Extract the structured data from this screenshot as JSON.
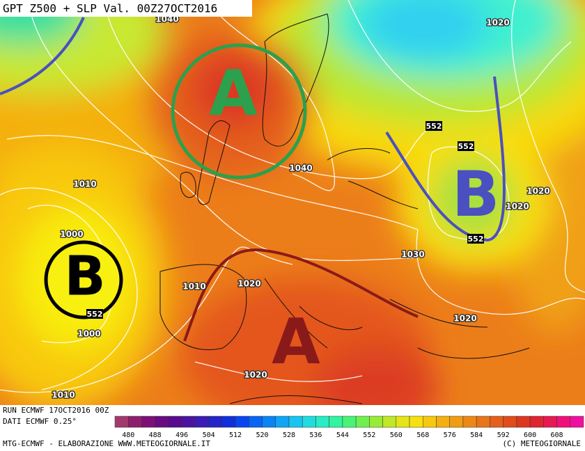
{
  "header": {
    "title": "GPT Z500 + SLP Val. 00Z27OCT2016"
  },
  "centers": [
    "A",
    "A",
    "B",
    "B"
  ],
  "isobar_labels": [
    "1040",
    "1020",
    "1010",
    "1000",
    "1040",
    "1020",
    "1020",
    "1030",
    "1010",
    "1020",
    "1000",
    "1020",
    "1020",
    "1010"
  ],
  "height_labels": [
    "552",
    "552",
    "552",
    "552"
  ],
  "footer": {
    "run": "RUN ECMWF 17OCT2016 00Z",
    "source": "DATI ECMWF 0.25°",
    "credit": "MTG-ECMWF - ELABORAZIONE WWW.METEOGIORNALE.IT",
    "copyright": "(C) METEOGIORNALE"
  },
  "colorbar": {
    "ticks": [
      480,
      488,
      496,
      504,
      512,
      520,
      528,
      536,
      544,
      552,
      560,
      568,
      576,
      584,
      592,
      600,
      608
    ],
    "colors": [
      "#a33a6e",
      "#8e1f6e",
      "#7d1077",
      "#6a0a82",
      "#5a0a8e",
      "#4a14a0",
      "#3a1cb4",
      "#2424c8",
      "#1030dc",
      "#0a46f0",
      "#0a64f4",
      "#0a84f4",
      "#10a4f4",
      "#18c4f0",
      "#20dce0",
      "#28ecc4",
      "#30f4a0",
      "#48f478",
      "#70f050",
      "#98ec38",
      "#c0e828",
      "#e4e418",
      "#f8e010",
      "#f8c810",
      "#f4b010",
      "#f09c14",
      "#ec8818",
      "#e8741c",
      "#e4601c",
      "#e04c1c",
      "#dc3820",
      "#e02430",
      "#e81850",
      "#f01078",
      "#f010a0"
    ]
  }
}
